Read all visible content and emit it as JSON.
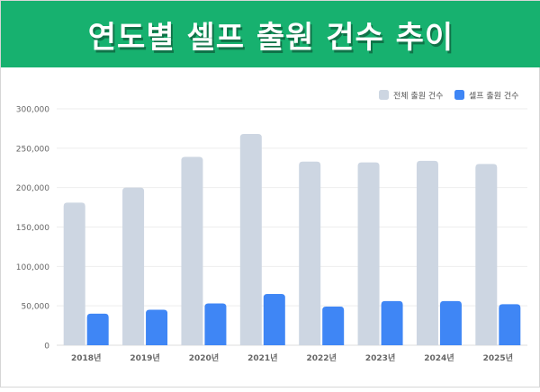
{
  "header": {
    "title": "연도별 셀프 출원 건수 추이"
  },
  "colors": {
    "banner": "#17b16f",
    "total_series": "#cdd6e2",
    "self_series": "#3f86f5",
    "grid": "#eeeeee",
    "axis_text": "#666666"
  },
  "chart_data": {
    "type": "bar",
    "title": "연도별 셀프 출원 건수 추이",
    "xlabel": "",
    "ylabel": "",
    "categories": [
      "2018년",
      "2019년",
      "2020년",
      "2021년",
      "2022년",
      "2023년",
      "2024년",
      "2025년"
    ],
    "ylim": [
      0,
      300000
    ],
    "yticks": [
      0,
      50000,
      100000,
      150000,
      200000,
      250000,
      300000
    ],
    "ytick_labels": [
      "0",
      "50,000",
      "100,000",
      "150,000",
      "200,000",
      "250,000",
      "300,000"
    ],
    "grid": true,
    "legend_position": "top-right",
    "series": [
      {
        "name": "전체 출원 건수",
        "values": [
          181000,
          200000,
          239000,
          268000,
          233000,
          232000,
          234000,
          230000
        ]
      },
      {
        "name": "셀프 출원 건수",
        "values": [
          40000,
          45000,
          53000,
          65000,
          49000,
          56000,
          56000,
          52000
        ]
      }
    ]
  }
}
